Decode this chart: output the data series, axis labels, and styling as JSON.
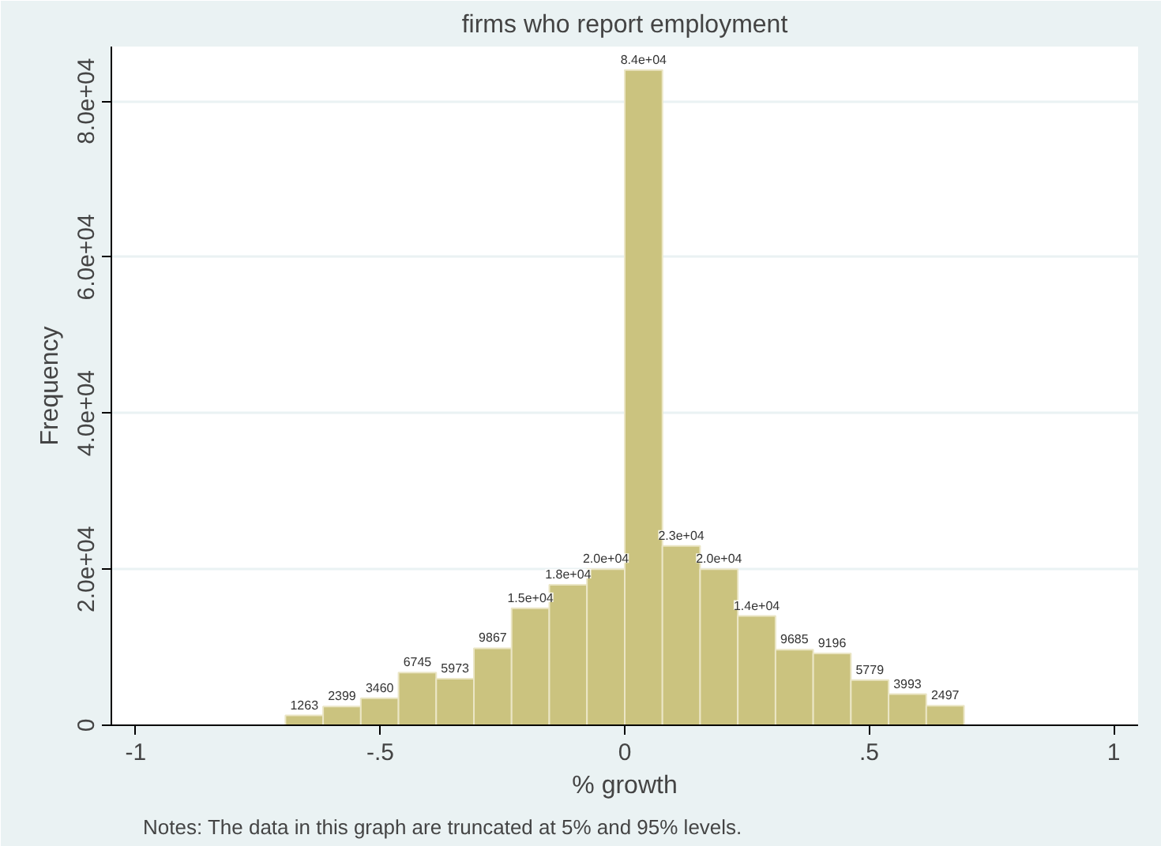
{
  "chart_data": {
    "type": "histogram",
    "title": "firms who report employment",
    "xlabel": "% growth",
    "ylabel": "Frequency",
    "bins": [
      -0.694,
      -0.6169,
      -0.5398,
      -0.4627,
      -0.3856,
      -0.3085,
      -0.2314,
      -0.1543,
      -0.0772,
      0,
      0.0771,
      0.1542,
      0.2313,
      0.3084,
      0.3855,
      0.4626,
      0.5397,
      0.6168,
      0.694
    ],
    "values": [
      1263,
      2399,
      3460,
      6745,
      5973,
      9867,
      15000,
      18000,
      20000,
      84000,
      23000,
      20000,
      14000,
      9685,
      9196,
      5779,
      3993,
      2497
    ],
    "value_labels": [
      "1263",
      "2399",
      "3460",
      "6745",
      "5973",
      "9867",
      "1.5e+04",
      "1.8e+04",
      "2.0e+04",
      "8.4e+04",
      "2.3e+04",
      "2.0e+04",
      "1.4e+04",
      "9685",
      "9196",
      "5779",
      "3993",
      "2497"
    ],
    "color": "#cbc37f",
    "xlim": [
      -1.05,
      1.05
    ],
    "xticks": [
      -1,
      {
        "value": -0.5,
        "label": "-.5"
      },
      0,
      {
        "value": 0.5,
        "label": ".5"
      },
      1
    ],
    "ylim": [
      0,
      87000
    ],
    "yticks": [
      0,
      {
        "value": 20000,
        "label": "2.0e+04"
      },
      {
        "value": 40000,
        "label": "4.0e+04"
      },
      {
        "value": 60000,
        "label": "6.0e+04"
      },
      {
        "value": 80000,
        "label": "8.0e+04"
      }
    ],
    "grid": "y",
    "legend": false,
    "annotations": [
      "Notes: The data in this graph are truncated at 5% and 95% levels."
    ]
  }
}
